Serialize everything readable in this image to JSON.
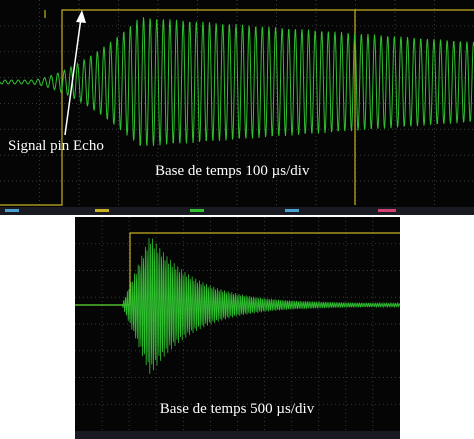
{
  "top_panel": {
    "annotation": "Signal pin Echo",
    "caption": "Base de temps 100 µs/div"
  },
  "bottom_panel": {
    "caption": "Base de temps 500 µs/div"
  }
}
